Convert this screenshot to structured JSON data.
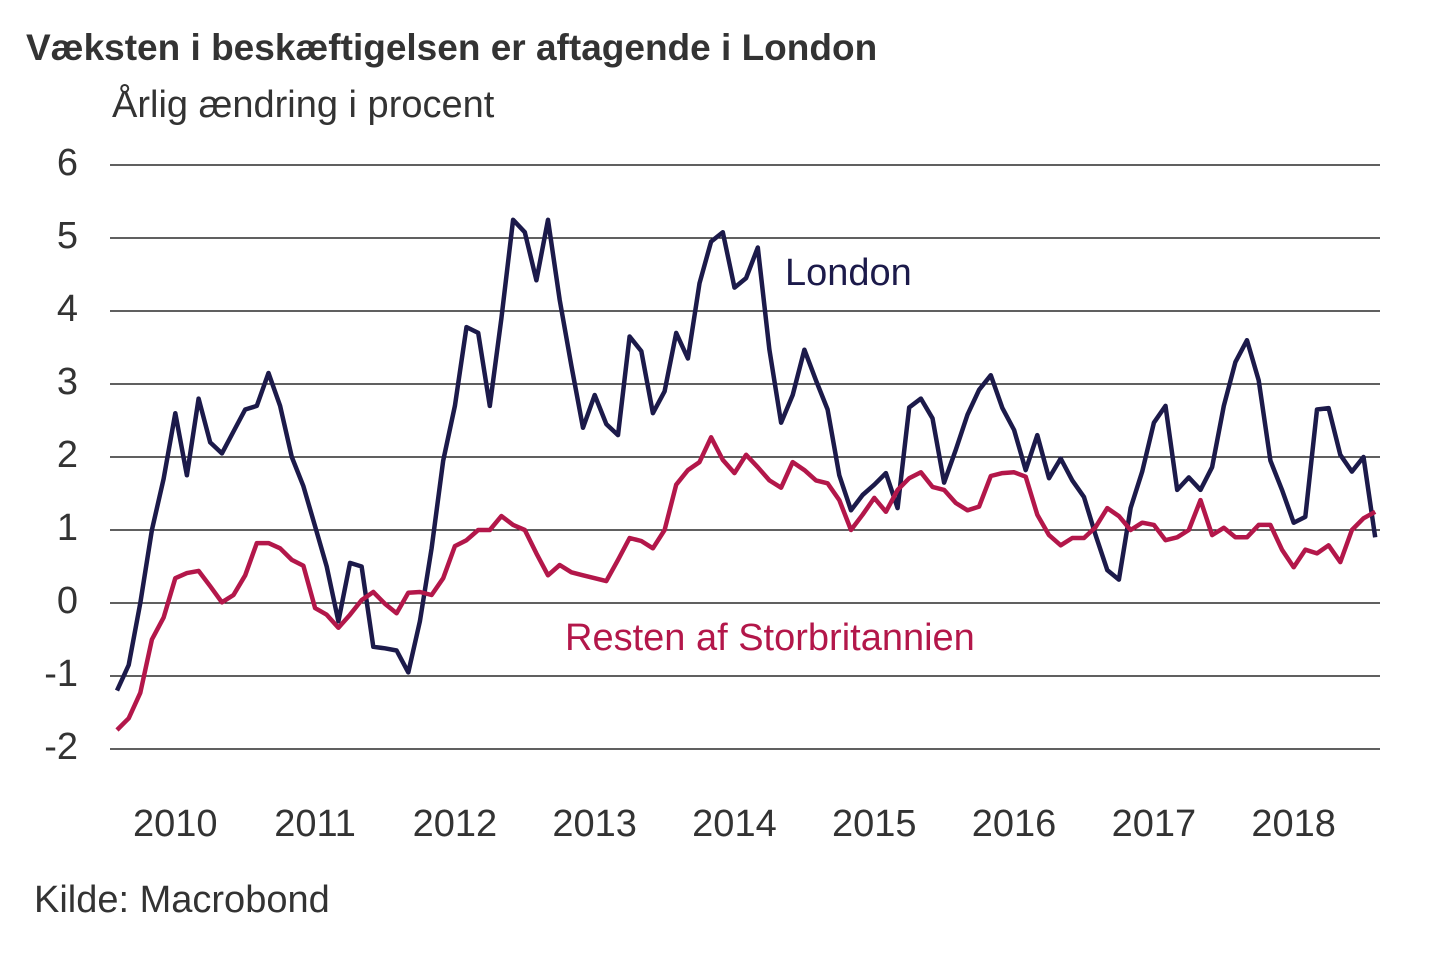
{
  "chart_data": {
    "type": "line",
    "title": "Væksten i beskæftigelsen er aftagende i London",
    "subtitle": "Årlig ændring i procent",
    "source": "Kilde: Macrobond",
    "categories": [
      null,
      null,
      null,
      null,
      null,
      "2010",
      null,
      null,
      null,
      null,
      null,
      null,
      null,
      null,
      null,
      null,
      null,
      "2011",
      null,
      null,
      null,
      null,
      null,
      null,
      null,
      null,
      null,
      null,
      null,
      "2012",
      null,
      null,
      null,
      null,
      null,
      null,
      null,
      null,
      null,
      null,
      null,
      "2013",
      null,
      null,
      null,
      null,
      null,
      null,
      null,
      null,
      null,
      null,
      null,
      "2014",
      null,
      null,
      null,
      null,
      null,
      null,
      null,
      null,
      null,
      null,
      null,
      "2015",
      null,
      null,
      null,
      null,
      null,
      null,
      null,
      null,
      null,
      null,
      null,
      "2016",
      null,
      null,
      null,
      null,
      null,
      null,
      null,
      null,
      null,
      null,
      null,
      "2017",
      null,
      null,
      null,
      null,
      null,
      null,
      null,
      null,
      null,
      null,
      null,
      "2018",
      null,
      null,
      null,
      null,
      null,
      null,
      null
    ],
    "series": [
      {
        "name": "London",
        "color": "#1c1a4a",
        "values": [
          -1.2,
          -0.85,
          0,
          1.0,
          1.7,
          2.6,
          1.75,
          2.8,
          2.2,
          2.05,
          2.35,
          2.65,
          2.7,
          3.15,
          2.7,
          2.0,
          1.6,
          1.05,
          0.5,
          -0.25,
          0.55,
          0.5,
          -0.6,
          -0.62,
          -0.65,
          -0.95,
          -0.25,
          0.75,
          1.95,
          2.7,
          3.78,
          3.7,
          2.7,
          3.9,
          5.25,
          5.08,
          4.42,
          5.25,
          4.15,
          3.25,
          2.4,
          2.85,
          2.45,
          2.3,
          3.65,
          3.45,
          2.6,
          2.9,
          3.7,
          3.35,
          4.38,
          4.95,
          5.08,
          4.32,
          4.45,
          4.87,
          3.47,
          2.47,
          2.85,
          3.47,
          3.05,
          2.65,
          1.75,
          1.27,
          1.48,
          1.62,
          1.78,
          1.3,
          2.68,
          2.8,
          2.53,
          1.65,
          2.1,
          2.58,
          2.92,
          3.12,
          2.67,
          2.37,
          1.82,
          2.3,
          1.71,
          1.98,
          1.68,
          1.45,
          0.93,
          0.45,
          0.32,
          1.3,
          1.8,
          2.47,
          2.7,
          1.55,
          1.72,
          1.55,
          1.86,
          2.7,
          3.3,
          3.6,
          3.05,
          1.95,
          1.55,
          1.1,
          1.18,
          2.65,
          2.67,
          2.03,
          1.8,
          2.0,
          0.9
        ]
      },
      {
        "name": "Resten af Storbritannien",
        "color": "#b3174a",
        "values": [
          -1.74,
          -1.58,
          -1.23,
          -0.5,
          -0.2,
          0.34,
          0.41,
          0.44,
          0.23,
          0.01,
          0.11,
          0.38,
          0.82,
          0.82,
          0.75,
          0.59,
          0.51,
          -0.07,
          -0.16,
          -0.34,
          -0.16,
          0.04,
          0.15,
          -0.01,
          -0.14,
          0.14,
          0.15,
          0.11,
          0.34,
          0.78,
          0.86,
          1.0,
          1.0,
          1.19,
          1.07,
          1.0,
          0.68,
          0.38,
          0.52,
          0.42,
          0.38,
          0.34,
          0.3,
          0.59,
          0.89,
          0.85,
          0.75,
          1.0,
          1.62,
          1.82,
          1.93,
          2.27,
          1.96,
          1.78,
          2.03,
          1.86,
          1.68,
          1.58,
          1.93,
          1.82,
          1.68,
          1.64,
          1.41,
          1.0,
          1.21,
          1.44,
          1.25,
          1.55,
          1.71,
          1.79,
          1.59,
          1.55,
          1.37,
          1.27,
          1.32,
          1.74,
          1.78,
          1.79,
          1.73,
          1.21,
          0.93,
          0.79,
          0.89,
          0.89,
          1.04,
          1.3,
          1.19,
          1.0,
          1.1,
          1.07,
          0.86,
          0.9,
          1.0,
          1.41,
          0.93,
          1.03,
          0.9,
          0.9,
          1.07,
          1.07,
          0.73,
          0.49,
          0.73,
          0.68,
          0.79,
          0.56,
          1.0,
          1.16,
          1.25
        ]
      }
    ],
    "ylim": [
      -2,
      6
    ],
    "yticks": [
      -2,
      -1,
      0,
      1,
      2,
      3,
      4,
      5,
      6
    ],
    "grid": true
  }
}
